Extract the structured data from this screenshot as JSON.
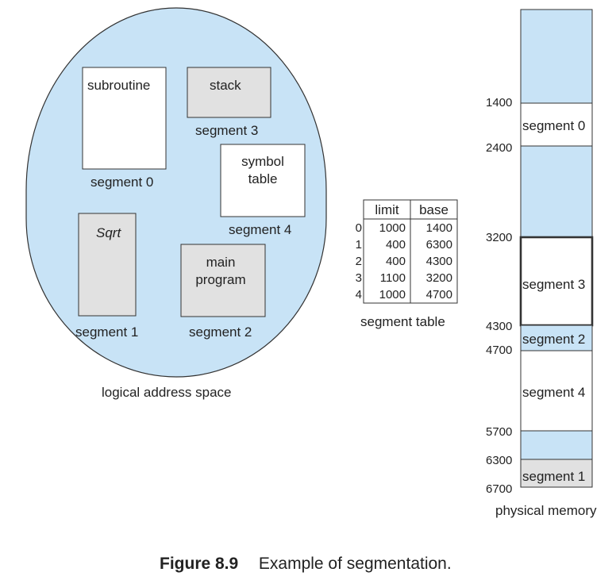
{
  "logical_space": {
    "label": "logical address space",
    "segments": [
      {
        "box": "subroutine",
        "label": "segment 0"
      },
      {
        "box": "stack",
        "label": "segment 3"
      },
      {
        "box_lines": [
          "symbol",
          "table"
        ],
        "label": "segment 4"
      },
      {
        "box": "Sqrt",
        "label": "segment 1"
      },
      {
        "box_lines": [
          "main",
          "program"
        ],
        "label": "segment 2"
      }
    ]
  },
  "segment_table": {
    "label": "segment table",
    "headers": [
      "limit",
      "base"
    ],
    "rows": [
      {
        "index": "0",
        "limit": "1000",
        "base": "1400"
      },
      {
        "index": "1",
        "limit": "400",
        "base": "6300"
      },
      {
        "index": "2",
        "limit": "400",
        "base": "4300"
      },
      {
        "index": "3",
        "limit": "1100",
        "base": "3200"
      },
      {
        "index": "4",
        "limit": "1000",
        "base": "4700"
      }
    ]
  },
  "physical_memory": {
    "label": "physical memory",
    "addresses": [
      "1400",
      "2400",
      "3200",
      "4300",
      "4700",
      "5700",
      "6300",
      "6700"
    ],
    "blocks": [
      "segment 0",
      "segment 3",
      "segment 2",
      "segment 4",
      "segment 1"
    ]
  },
  "caption": {
    "number": "Figure 8.9",
    "text": "Example of segmentation."
  },
  "colors": {
    "light_blue": "#c8e3f6",
    "gray": "#e1e1e1",
    "stroke": "#333333"
  }
}
